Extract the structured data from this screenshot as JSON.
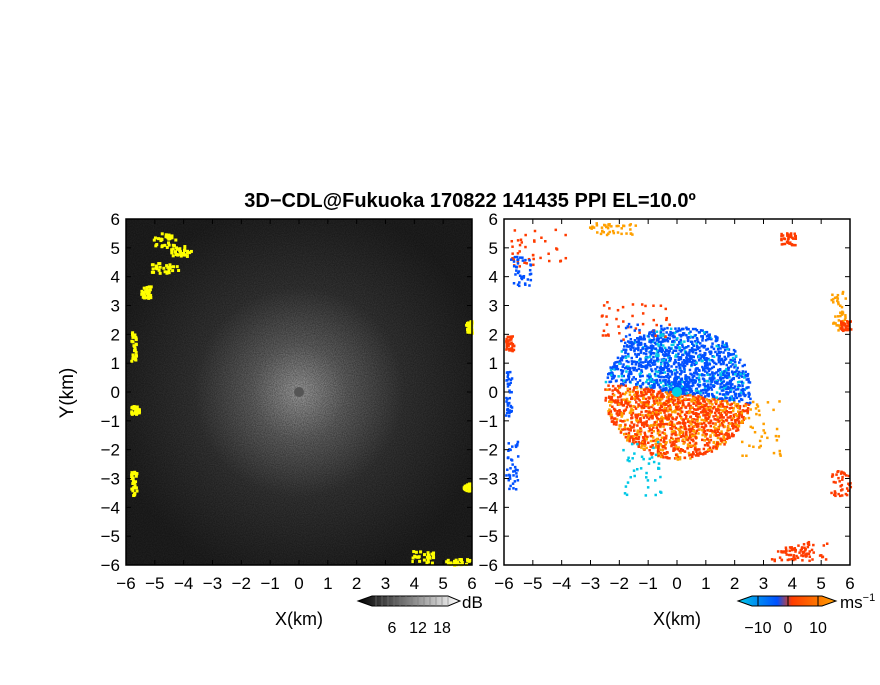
{
  "title": "3D−CDL@Fukuoka 170822 141435 PPI EL=10.0º",
  "chart_data": [
    {
      "type": "heatmap",
      "panel": "reflectivity",
      "xlabel": "X(km)",
      "ylabel": "Y(km)",
      "xlim": [
        -6,
        6
      ],
      "ylim": [
        -6,
        6
      ],
      "xticks": [
        "−6",
        "−5",
        "−4",
        "−3",
        "−2",
        "−1",
        "0",
        "1",
        "2",
        "3",
        "4",
        "5",
        "6"
      ],
      "yticks": [
        "6",
        "5",
        "4",
        "3",
        "2",
        "1",
        "0",
        "−1",
        "−2",
        "−3",
        "−4",
        "−5",
        "−6"
      ],
      "colorbar": {
        "unit": "dB",
        "ticks": [
          "6",
          "12",
          "18"
        ],
        "colors": [
          "#000000",
          "#ffffff"
        ],
        "highlight_color": "#ffff00"
      }
    },
    {
      "type": "heatmap",
      "panel": "doppler_velocity",
      "xlabel": "X(km)",
      "xlim": [
        -6,
        6
      ],
      "ylim": [
        -6,
        6
      ],
      "xticks": [
        "−6",
        "−5",
        "−4",
        "−3",
        "−2",
        "−1",
        "0",
        "1",
        "2",
        "3",
        "4",
        "5",
        "6"
      ],
      "yticks": [
        "6",
        "5",
        "4",
        "3",
        "2",
        "1",
        "0",
        "−1",
        "−2",
        "−3",
        "−4",
        "−5",
        "−6"
      ],
      "colorbar": {
        "unit": "ms",
        "unit_exponent": "−1",
        "ticks": [
          "−10",
          "0",
          "10"
        ],
        "colors": [
          "#00c8e6",
          "#0050ff",
          "#ff3c00",
          "#ffa000"
        ]
      }
    }
  ]
}
